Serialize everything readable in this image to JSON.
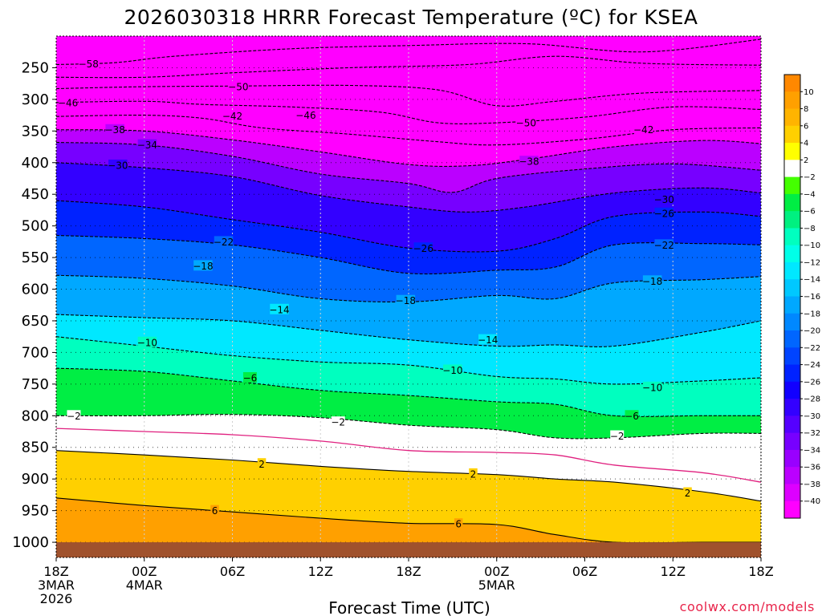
{
  "chart_data": {
    "type": "heatmap",
    "title": "2026030318 HRRR Forecast Temperature (ºC) for KSEA",
    "xlabel": "Forecast Time (UTC)",
    "ylabel": "",
    "credit": "coolwx.com/models",
    "x_range_hours": [
      0,
      48
    ],
    "y_range_hPa": [
      200,
      1024
    ],
    "x_ticks": [
      {
        "hour": 0,
        "lines": [
          "18Z",
          "3MAR",
          "2026"
        ]
      },
      {
        "hour": 6,
        "lines": [
          "00Z",
          "4MAR"
        ]
      },
      {
        "hour": 12,
        "lines": [
          "06Z"
        ]
      },
      {
        "hour": 18,
        "lines": [
          "12Z"
        ]
      },
      {
        "hour": 24,
        "lines": [
          "18Z"
        ]
      },
      {
        "hour": 30,
        "lines": [
          "00Z",
          "5MAR"
        ]
      },
      {
        "hour": 36,
        "lines": [
          "06Z"
        ]
      },
      {
        "hour": 42,
        "lines": [
          "12Z"
        ]
      },
      {
        "hour": 48,
        "lines": [
          "18Z"
        ]
      }
    ],
    "y_ticks": [
      250,
      300,
      350,
      400,
      450,
      500,
      550,
      600,
      650,
      700,
      750,
      800,
      850,
      900,
      950,
      1000
    ],
    "ground_pressure_hPa": 1000,
    "colorbar_labels": [
      "10",
      "8",
      "6",
      "4",
      "2",
      "−2",
      "−4",
      "−6",
      "−8",
      "−10",
      "−12",
      "−14",
      "−16",
      "−18",
      "−20",
      "−22",
      "−24",
      "−26",
      "−28",
      "−30",
      "−32",
      "−34",
      "−36",
      "−38",
      "−40"
    ],
    "colorbar_colors": [
      "#ff8800",
      "#ffa000",
      "#ffb400",
      "#ffd000",
      "#ffff00",
      "#ffffff",
      "#44ff00",
      "#00ee44",
      "#00f080",
      "#00ffbf",
      "#00ffe8",
      "#00e8ff",
      "#00c8ff",
      "#00a8ff",
      "#0088ff",
      "#0066ff",
      "#0044ff",
      "#0022ff",
      "#1100ff",
      "#3300ff",
      "#5500ff",
      "#7700ff",
      "#9900ff",
      "#bb00ff",
      "#dd00ff",
      "#ff00ff"
    ],
    "ground_color": "#a0522d",
    "contour_interval_C": 4,
    "zero_line_color": "#e0207f",
    "isotherms": [
      {
        "temp": -58,
        "label": "−58",
        "points": [
          [
            0,
            245
          ],
          [
            4,
            242
          ],
          [
            8,
            232
          ],
          [
            16,
            220
          ],
          [
            24,
            215
          ],
          [
            32,
            212
          ],
          [
            40,
            225
          ],
          [
            48,
            205
          ]
        ]
      },
      {
        "temp": -54,
        "label": "",
        "points": [
          [
            0,
            265
          ],
          [
            6,
            265
          ],
          [
            12,
            258
          ],
          [
            20,
            250
          ],
          [
            28,
            245
          ],
          [
            34,
            232
          ],
          [
            40,
            243
          ],
          [
            48,
            246
          ]
        ]
      },
      {
        "temp": -50,
        "label": "−50",
        "points": [
          [
            0,
            283
          ],
          [
            6,
            280
          ],
          [
            12,
            279
          ],
          [
            20,
            278
          ],
          [
            26,
            285
          ],
          [
            30,
            310
          ],
          [
            34,
            303
          ],
          [
            40,
            290
          ],
          [
            48,
            286
          ]
        ]
      },
      {
        "temp": -46,
        "label": "−46",
        "points": [
          [
            0,
            305
          ],
          [
            6,
            303
          ],
          [
            10,
            308
          ],
          [
            16,
            312
          ],
          [
            22,
            320
          ],
          [
            26,
            337
          ],
          [
            30,
            337
          ],
          [
            36,
            328
          ],
          [
            42,
            312
          ],
          [
            48,
            316
          ]
        ]
      },
      {
        "temp": -42,
        "label": "−42",
        "points": [
          [
            0,
            327
          ],
          [
            6,
            325
          ],
          [
            10,
            330
          ],
          [
            14,
            345
          ],
          [
            20,
            355
          ],
          [
            26,
            367
          ],
          [
            30,
            372
          ],
          [
            36,
            363
          ],
          [
            42,
            348
          ],
          [
            48,
            345
          ]
        ]
      },
      {
        "temp": -38,
        "label": "−38",
        "points": [
          [
            0,
            348
          ],
          [
            6,
            350
          ],
          [
            12,
            364
          ],
          [
            18,
            383
          ],
          [
            24,
            403
          ],
          [
            28,
            405
          ],
          [
            32,
            395
          ],
          [
            38,
            375
          ],
          [
            44,
            365
          ],
          [
            48,
            370
          ]
        ]
      },
      {
        "temp": -34,
        "label": "−34",
        "points": [
          [
            0,
            368
          ],
          [
            6,
            372
          ],
          [
            12,
            390
          ],
          [
            18,
            418
          ],
          [
            24,
            433
          ],
          [
            27,
            447
          ],
          [
            30,
            425
          ],
          [
            36,
            410
          ],
          [
            42,
            402
          ],
          [
            48,
            412
          ]
        ]
      },
      {
        "temp": -30,
        "label": "−30",
        "points": [
          [
            0,
            400
          ],
          [
            6,
            408
          ],
          [
            12,
            422
          ],
          [
            18,
            452
          ],
          [
            24,
            470
          ],
          [
            28,
            478
          ],
          [
            32,
            470
          ],
          [
            38,
            448
          ],
          [
            44,
            440
          ],
          [
            48,
            448
          ]
        ]
      },
      {
        "temp": -26,
        "label": "−26",
        "points": [
          [
            0,
            460
          ],
          [
            6,
            470
          ],
          [
            12,
            490
          ],
          [
            18,
            510
          ],
          [
            24,
            535
          ],
          [
            30,
            540
          ],
          [
            34,
            520
          ],
          [
            38,
            485
          ],
          [
            44,
            478
          ],
          [
            48,
            485
          ]
        ]
      },
      {
        "temp": -22,
        "label": "−22",
        "points": [
          [
            0,
            515
          ],
          [
            6,
            520
          ],
          [
            12,
            530
          ],
          [
            18,
            550
          ],
          [
            24,
            575
          ],
          [
            30,
            570
          ],
          [
            34,
            565
          ],
          [
            38,
            530
          ],
          [
            44,
            528
          ],
          [
            48,
            530
          ]
        ]
      },
      {
        "temp": -18,
        "label": "−18",
        "points": [
          [
            0,
            578
          ],
          [
            6,
            583
          ],
          [
            12,
            595
          ],
          [
            18,
            615
          ],
          [
            24,
            620
          ],
          [
            30,
            610
          ],
          [
            34,
            615
          ],
          [
            38,
            590
          ],
          [
            44,
            585
          ],
          [
            48,
            580
          ]
        ]
      },
      {
        "temp": -14,
        "label": "−14",
        "points": [
          [
            0,
            640
          ],
          [
            6,
            645
          ],
          [
            12,
            650
          ],
          [
            18,
            665
          ],
          [
            24,
            680
          ],
          [
            30,
            690
          ],
          [
            34,
            688
          ],
          [
            38,
            690
          ],
          [
            44,
            668
          ],
          [
            48,
            650
          ]
        ]
      },
      {
        "temp": -10,
        "label": "−10",
        "points": [
          [
            0,
            675
          ],
          [
            6,
            690
          ],
          [
            12,
            705
          ],
          [
            18,
            715
          ],
          [
            24,
            720
          ],
          [
            30,
            738
          ],
          [
            34,
            742
          ],
          [
            38,
            750
          ],
          [
            44,
            745
          ],
          [
            48,
            740
          ]
        ]
      },
      {
        "temp": -6,
        "label": "−6",
        "points": [
          [
            0,
            725
          ],
          [
            6,
            730
          ],
          [
            12,
            745
          ],
          [
            18,
            760
          ],
          [
            24,
            768
          ],
          [
            30,
            778
          ],
          [
            34,
            782
          ],
          [
            38,
            800
          ],
          [
            44,
            800
          ],
          [
            48,
            800
          ]
        ]
      },
      {
        "temp": -2,
        "label": "−2",
        "points": [
          [
            0,
            800
          ],
          [
            6,
            800
          ],
          [
            12,
            798
          ],
          [
            18,
            803
          ],
          [
            24,
            815
          ],
          [
            30,
            822
          ],
          [
            34,
            835
          ],
          [
            38,
            835
          ],
          [
            44,
            828
          ],
          [
            48,
            828
          ]
        ]
      },
      {
        "temp": 2,
        "label": "2",
        "points": [
          [
            0,
            855
          ],
          [
            6,
            862
          ],
          [
            12,
            870
          ],
          [
            18,
            880
          ],
          [
            24,
            888
          ],
          [
            30,
            893
          ],
          [
            34,
            900
          ],
          [
            38,
            905
          ],
          [
            44,
            920
          ],
          [
            48,
            935
          ]
        ]
      },
      {
        "temp": 6,
        "label": "6",
        "points": [
          [
            0,
            930
          ],
          [
            6,
            942
          ],
          [
            12,
            952
          ],
          [
            18,
            962
          ],
          [
            24,
            970
          ],
          [
            30,
            972
          ],
          [
            34,
            988
          ],
          [
            38,
            1000
          ],
          [
            44,
            1000
          ],
          [
            48,
            1000
          ]
        ]
      }
    ],
    "zero_isotherm": {
      "temp": 0,
      "points": [
        [
          0,
          820
        ],
        [
          6,
          825
        ],
        [
          12,
          830
        ],
        [
          18,
          840
        ],
        [
          24,
          855
        ],
        [
          30,
          858
        ],
        [
          34,
          862
        ],
        [
          38,
          878
        ],
        [
          44,
          890
        ],
        [
          48,
          905
        ]
      ]
    },
    "contour_labels": [
      {
        "text": "−58",
        "hour": 2.2,
        "p": 244
      },
      {
        "text": "−50",
        "hour": 12.4,
        "p": 280
      },
      {
        "text": "−46",
        "hour": 0.8,
        "p": 305
      },
      {
        "text": "−42",
        "hour": 12.0,
        "p": 326
      },
      {
        "text": "−46",
        "hour": 17.0,
        "p": 325
      },
      {
        "text": "−50",
        "hour": 32.0,
        "p": 337
      },
      {
        "text": "−38",
        "hour": 4.0,
        "p": 348
      },
      {
        "text": "−34",
        "hour": 6.2,
        "p": 372
      },
      {
        "text": "−42",
        "hour": 40.0,
        "p": 348
      },
      {
        "text": "−30",
        "hour": 4.2,
        "p": 404
      },
      {
        "text": "−38",
        "hour": 32.2,
        "p": 398
      },
      {
        "text": "−30",
        "hour": 41.4,
        "p": 458
      },
      {
        "text": "−26",
        "hour": 41.4,
        "p": 480
      },
      {
        "text": "−22",
        "hour": 11.4,
        "p": 525
      },
      {
        "text": "−26",
        "hour": 25.0,
        "p": 535
      },
      {
        "text": "−22",
        "hour": 41.4,
        "p": 530
      },
      {
        "text": "−18",
        "hour": 10.0,
        "p": 563
      },
      {
        "text": "−18",
        "hour": 40.6,
        "p": 587
      },
      {
        "text": "−14",
        "hour": 15.2,
        "p": 632
      },
      {
        "text": "−18",
        "hour": 23.8,
        "p": 618
      },
      {
        "text": "−14",
        "hour": 29.4,
        "p": 680
      },
      {
        "text": "−10",
        "hour": 6.2,
        "p": 684
      },
      {
        "text": "−10",
        "hour": 27.0,
        "p": 728
      },
      {
        "text": "−6",
        "hour": 13.2,
        "p": 740
      },
      {
        "text": "−10",
        "hour": 40.6,
        "p": 755
      },
      {
        "text": "−2",
        "hour": 1.2,
        "p": 800
      },
      {
        "text": "−6",
        "hour": 39.2,
        "p": 800
      },
      {
        "text": "−2",
        "hour": 19.2,
        "p": 810
      },
      {
        "text": "−2",
        "hour": 38.2,
        "p": 832
      },
      {
        "text": "2",
        "hour": 14.0,
        "p": 876
      },
      {
        "text": "2",
        "hour": 28.4,
        "p": 892
      },
      {
        "text": "2",
        "hour": 43.0,
        "p": 922
      },
      {
        "text": "6",
        "hour": 10.8,
        "p": 950
      },
      {
        "text": "6",
        "hour": 27.4,
        "p": 971
      }
    ]
  }
}
